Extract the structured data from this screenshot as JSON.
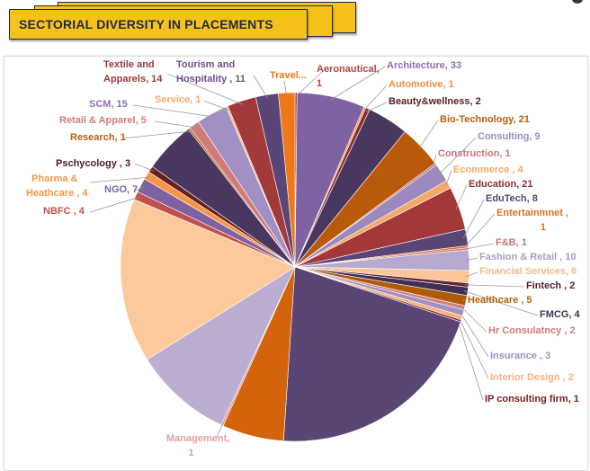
{
  "header": {
    "title": "SECTORIAL DIVERSITY IN PLACEMENTS",
    "banner_color": "#f6c21a"
  },
  "chart_data": {
    "type": "pie",
    "title": "",
    "legend": "none",
    "slices": [
      {
        "name": "Aeronautical",
        "value": 1,
        "label": "Aeronautical,\n1",
        "color": "#a83a3a",
        "text_color": "#b84040"
      },
      {
        "name": "Architecture",
        "value": 33,
        "label": "Architecture, 33",
        "color": "#7e62a1",
        "text_color": "#8a72b0"
      },
      {
        "name": "Automotive",
        "value": 1,
        "label": "Automotive, 1",
        "color": "#f79646",
        "text_color": "#f0903a"
      },
      {
        "name": "Beauty&wellness",
        "value": 2,
        "label": "Beauty&wellness, 2",
        "color": "#8b2d2d",
        "text_color": "#5a2020"
      },
      {
        "name": "",
        "value": 20,
        "label": "",
        "color": "#4a3760",
        "text_color": ""
      },
      {
        "name": "Bio-Technology",
        "value": 21,
        "label": "Bio-Technology, 21",
        "color": "#b85a0a",
        "text_color": "#b8600a"
      },
      {
        "name": "Construction",
        "value": 1,
        "label": "Construction, 1",
        "color": "#c8757a",
        "text_color": "#c8757a"
      },
      {
        "name": "Consulting",
        "value": 9,
        "label": "Consulting, 9",
        "color": "#9c89bf",
        "text_color": "#9c89bf"
      },
      {
        "name": "Ecommerce",
        "value": 4,
        "label": "Ecommerce , 4",
        "color": "#f8a868",
        "text_color": "#f8a868"
      },
      {
        "name": "Education",
        "value": 21,
        "label": "Education, 21",
        "color": "#a33838",
        "text_color": "#8b2d3a"
      },
      {
        "name": "EduTech",
        "value": 8,
        "label": "EduTech, 8",
        "color": "#5a4577",
        "text_color": "#5a4577"
      },
      {
        "name": "Entertainmnet",
        "value": 1,
        "label": "Entertainmnet ,\n                1",
        "color": "#e07020",
        "text_color": "#e07020"
      },
      {
        "name": "F&B",
        "value": 1,
        "label": "F&B, 1",
        "color": "#c47b7b",
        "text_color": "#c8757a"
      },
      {
        "name": "Fashion & Retail",
        "value": 10,
        "label": "Fashion & Retail , 10",
        "color": "#b7a9cf",
        "text_color": "#a99bc6"
      },
      {
        "name": "Financial Services",
        "value": 6,
        "label": "Financial Services, 6",
        "color": "#fbc59a",
        "text_color": "#f8b888"
      },
      {
        "name": "Fintech",
        "value": 2,
        "label": "Fintech , 2",
        "color": "#6b2533",
        "text_color": "#5a2030"
      },
      {
        "name": "FMCG",
        "value": 4,
        "label": "FMCG, 4",
        "color": "#3f3155",
        "text_color": "#3f3155"
      },
      {
        "name": "Healthcare",
        "value": 5,
        "label": "Healthcare , 5",
        "color": "#b05a08",
        "text_color": "#b8600a"
      },
      {
        "name": "Hr Consulatncy",
        "value": 2,
        "label": "Hr Consulatncy , 2",
        "color": "#d08080",
        "text_color": "#d07c7c"
      },
      {
        "name": "Insurance",
        "value": 3,
        "label": "Insurance , 3",
        "color": "#a090c4",
        "text_color": "#a090c4"
      },
      {
        "name": "Interior Design",
        "value": 2,
        "label": "Interior Design , 2",
        "color": "#f7b27a",
        "text_color": "#f8b080"
      },
      {
        "name": "IP consulting firm",
        "value": 1,
        "label": "IP consulting firm, 1",
        "color": "#8b2d2d",
        "text_color": "#7a2020"
      },
      {
        "name": "",
        "value": 110,
        "label": "",
        "color": "#5b4574",
        "text_color": ""
      },
      {
        "name": "",
        "value": 30,
        "label": "",
        "color": "#d4640c",
        "text_color": ""
      },
      {
        "name": "Management",
        "value": 1,
        "label": "Management,\n        1",
        "color": "#d89a9a",
        "text_color": "#e0a0a0"
      },
      {
        "name": "",
        "value": 48,
        "label": "",
        "color": "#bcaed0",
        "text_color": ""
      },
      {
        "name": "",
        "value": 80,
        "label": "",
        "color": "#fbc99c",
        "text_color": ""
      },
      {
        "name": "NBFC",
        "value": 4,
        "label": "NBFC , 4",
        "color": "#c0504d",
        "text_color": "#c0504d"
      },
      {
        "name": "NGO",
        "value": 7,
        "label": "NGO, 7",
        "color": "#7e62a1",
        "text_color": "#7e62a1"
      },
      {
        "name": "Pharma & Heathcare",
        "value": 4,
        "label": "  Pharma &\nHeathcare , 4",
        "color": "#f79646",
        "text_color": "#f79646"
      },
      {
        "name": "Pschycology",
        "value": 3,
        "label": "Pschycology , 3",
        "color": "#6b2020",
        "text_color": "#4a1a2a"
      },
      {
        "name": "",
        "value": 25,
        "label": "",
        "color": "#4a3760",
        "text_color": ""
      },
      {
        "name": "Research",
        "value": 1,
        "label": "Research, 1",
        "color": "#c06010",
        "text_color": "#b8600a"
      },
      {
        "name": "Retail & Apparel",
        "value": 5,
        "label": "Retail & Apparel, 5",
        "color": "#d07c7c",
        "text_color": "#d07c7c"
      },
      {
        "name": "SCM",
        "value": 15,
        "label": "SCM, 15",
        "color": "#a290c4",
        "text_color": "#8a72b0"
      },
      {
        "name": "Service",
        "value": 1,
        "label": "Service, 1",
        "color": "#f8b080",
        "text_color": "#f8a868"
      },
      {
        "name": "Textile and Apparels",
        "value": 14,
        "label": "Textile and\nApparels, 14",
        "color": "#a33a3a",
        "text_color": "#9b3a3a"
      },
      {
        "name": "Tourism and Hospitality",
        "value": 11,
        "label": "Tourism and\nHospitality , 11",
        "color": "#5a4577",
        "text_color": "#6b4f8f"
      },
      {
        "name": "Travel",
        "value": 8,
        "label": "Travel...",
        "color": "#f07818",
        "text_color": "#e87a20"
      }
    ]
  }
}
